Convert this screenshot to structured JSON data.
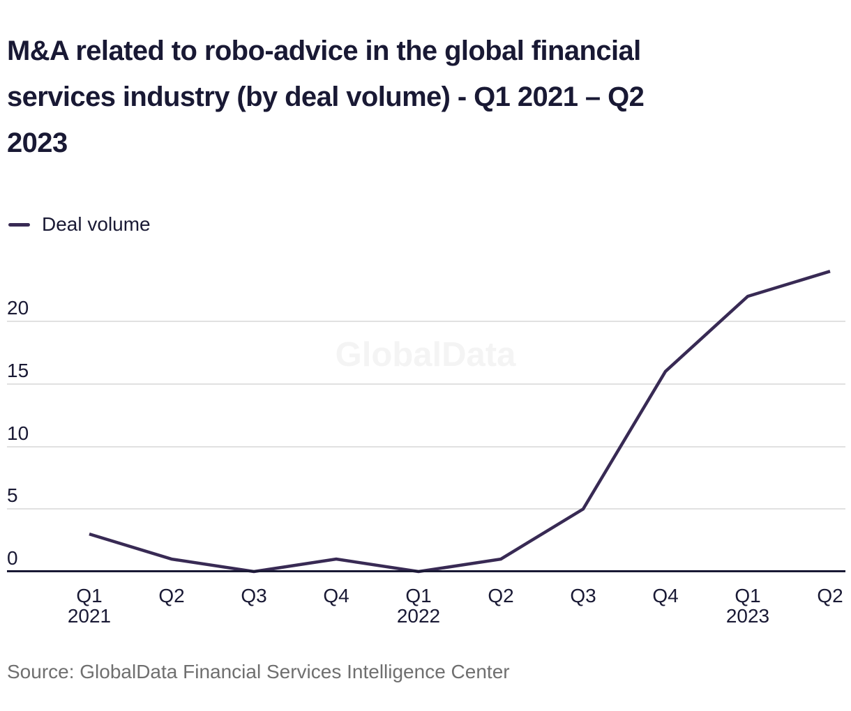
{
  "title": {
    "lines": [
      "M&A related to robo-advice in the global financial",
      "services industry (by deal volume) - Q1 2021 – Q2",
      "2023"
    ]
  },
  "legend": {
    "label": "Deal volume",
    "color": "#382a54"
  },
  "watermark": "GlobalData",
  "source": "Source: GlobalData Financial Services Intelligence Center",
  "colors": {
    "text_dark": "#191934",
    "line": "#382a54",
    "gridline": "#e1e1e1",
    "axis": "#191934",
    "source_text": "#6f6f6f",
    "watermark": "#f4f4f4",
    "background": "#ffffff"
  },
  "chart_data": {
    "type": "line",
    "title": "M&A related to robo-advice in the global financial services industry (by deal volume) - Q1 2021 – Q2 2023",
    "categories": [
      "Q1 2021",
      "Q2 2021",
      "Q3 2021",
      "Q4 2021",
      "Q1 2022",
      "Q2 2022",
      "Q3 2022",
      "Q4 2022",
      "Q1 2023",
      "Q2 2023"
    ],
    "x_tick_labels": [
      "Q1",
      "Q2",
      "Q3",
      "Q4",
      "Q1",
      "Q2",
      "Q3",
      "Q4",
      "Q1",
      "Q2"
    ],
    "x_year_labels": {
      "0": "2021",
      "4": "2022",
      "8": "2023"
    },
    "series": [
      {
        "name": "Deal volume",
        "values": [
          3,
          1,
          0,
          1,
          0,
          1,
          5,
          16,
          22,
          24
        ],
        "color": "#382a54"
      }
    ],
    "xlabel": "",
    "ylabel": "",
    "y_ticks": [
      0,
      5,
      10,
      15,
      20
    ],
    "ylim": [
      0,
      24.5
    ],
    "grid": "horizontal",
    "legend_position": "top-left"
  }
}
